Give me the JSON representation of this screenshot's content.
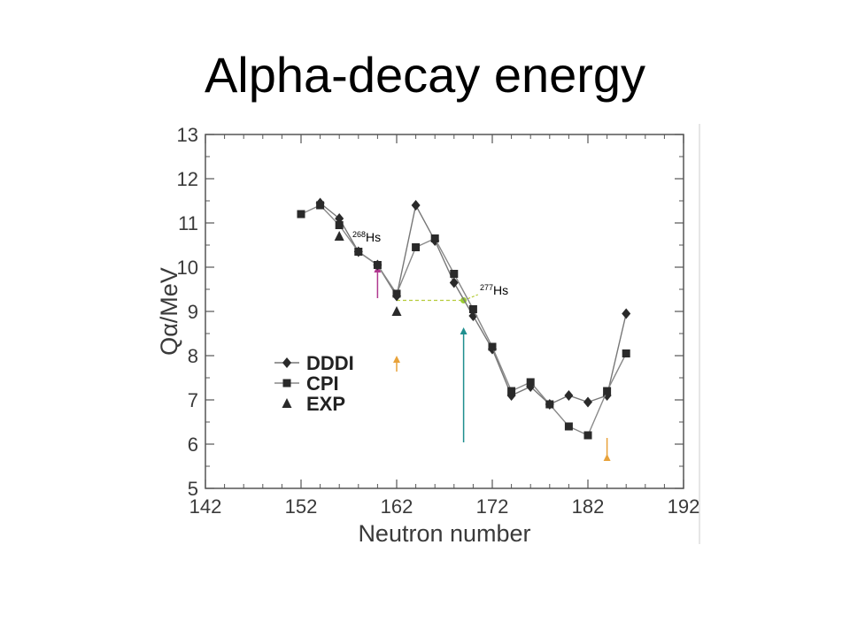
{
  "title": "Alpha-decay energy",
  "chart_data": {
    "type": "line",
    "title": "Alpha-decay energy",
    "xlabel": "Neutron number",
    "ylabel": "Qα/MeV",
    "xlim": [
      142,
      192
    ],
    "ylim": [
      5,
      13
    ],
    "xticks": [
      142,
      152,
      162,
      172,
      182,
      192
    ],
    "yticks": [
      5,
      6,
      7,
      8,
      9,
      10,
      11,
      12,
      13
    ],
    "legend_position": "left",
    "grid": false,
    "series": [
      {
        "name": "DDDI",
        "marker": "diamond",
        "color": "#777777",
        "x": [
          154,
          156,
          158,
          160,
          162,
          164,
          166,
          168,
          170,
          172,
          174,
          176,
          178,
          180,
          182,
          184,
          186
        ],
        "y": [
          11.45,
          11.1,
          10.35,
          10.05,
          9.35,
          11.4,
          10.6,
          9.65,
          8.9,
          8.15,
          7.1,
          7.3,
          6.9,
          7.1,
          6.95,
          7.1,
          8.95
        ]
      },
      {
        "name": "CPI",
        "marker": "square",
        "color": "#888888",
        "x": [
          152,
          154,
          156,
          158,
          160,
          162,
          164,
          166,
          168,
          170,
          172,
          174,
          176,
          178,
          180,
          182,
          184,
          186
        ],
        "y": [
          11.2,
          11.4,
          10.95,
          10.35,
          10.05,
          9.4,
          10.45,
          10.65,
          9.85,
          9.05,
          8.2,
          7.2,
          7.4,
          6.9,
          6.4,
          6.2,
          7.2,
          8.05
        ]
      },
      {
        "name": "EXP",
        "marker": "triangle",
        "color": "#333333",
        "x": [
          156,
          162
        ],
        "y": [
          10.7,
          9.0
        ]
      }
    ],
    "annotations": [
      {
        "label_mass": "268",
        "label_symbol": "Hs"
      },
      {
        "label_mass": "277",
        "label_symbol": "Hs"
      }
    ],
    "arrows": [
      {
        "x": 160,
        "color": "#b0388f"
      },
      {
        "x": 162,
        "color": "#e8a23a"
      },
      {
        "x": 169,
        "color": "#1f8f8f"
      },
      {
        "x": 184,
        "color": "#e8a23a"
      }
    ]
  }
}
